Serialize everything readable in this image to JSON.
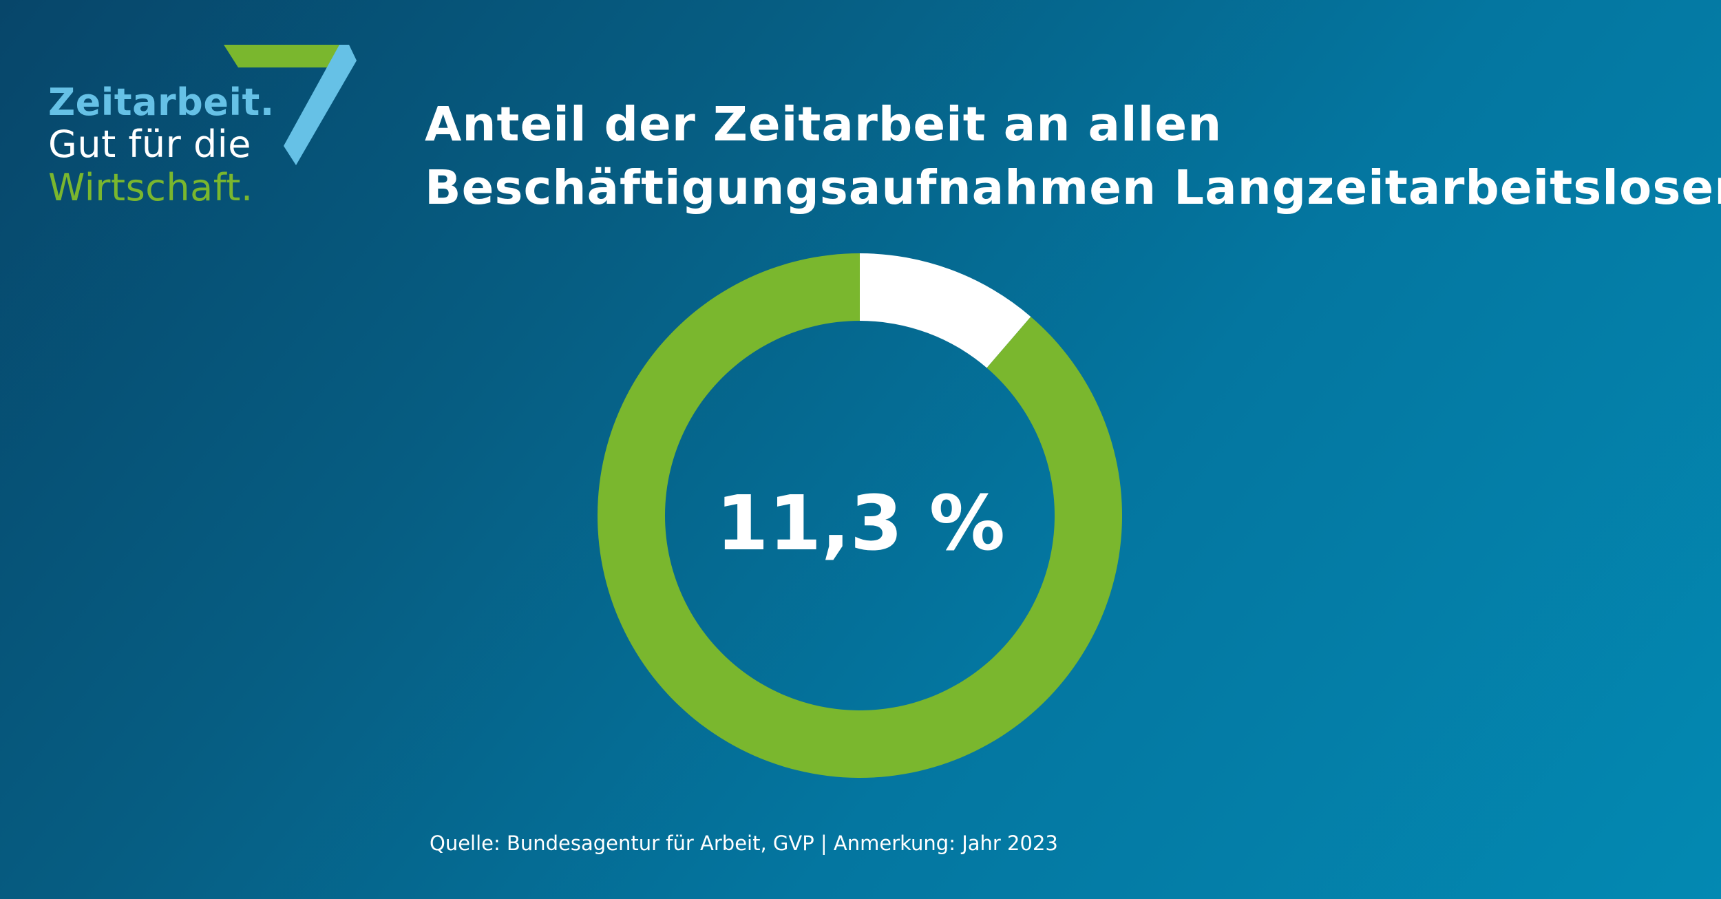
{
  "logo": {
    "line1": "Zeitarbeit.",
    "line2": "Gut für die",
    "line3": "Wirtschaft.",
    "colors": {
      "blue": "#66c1e6",
      "green": "#7ab72e",
      "white": "#ffffff"
    }
  },
  "title": {
    "line1": "Anteil der Zeitarbeit an allen",
    "line2": "Beschäftigungsaufnahmen Langzeitarbeitsloser"
  },
  "chart_data": {
    "type": "pie",
    "variant": "donut",
    "title": "Anteil der Zeitarbeit an allen Beschäftigungsaufnahmen Langzeitarbeitsloser",
    "center_label": "11,3 %",
    "slices": [
      {
        "value": 11.3,
        "color": "#ffffff"
      },
      {
        "value": 88.7,
        "color": "#7ab72e"
      }
    ],
    "unit": "%"
  },
  "source": "Quelle: Bundesagentur für Arbeit, GVP | Anmerkung: Jahr 2023"
}
